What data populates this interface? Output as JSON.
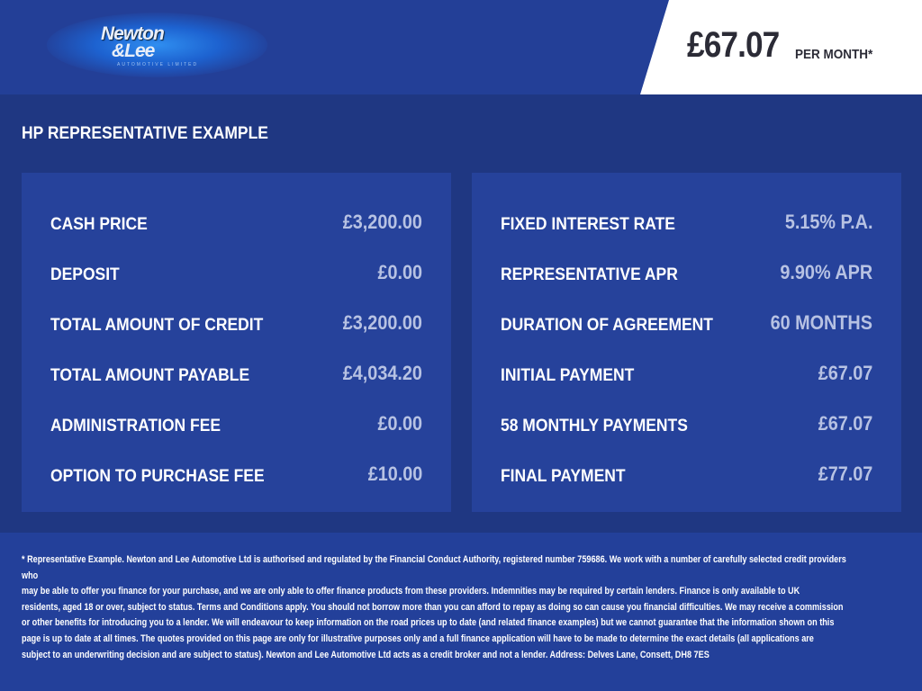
{
  "header": {
    "logo_text": [
      "Newton",
      "&Lee",
      "AUTOMOTIVE LIMITED"
    ],
    "price": "£67.07",
    "price_suffix": "PER MONTH*"
  },
  "section_title": "HP REPRESENTATIVE EXAMPLE",
  "left_panel": [
    {
      "label": "CASH PRICE",
      "value": "£3,200.00"
    },
    {
      "label": "DEPOSIT",
      "value": "£0.00"
    },
    {
      "label": "TOTAL AMOUNT OF CREDIT",
      "value": "£3,200.00"
    },
    {
      "label": "TOTAL AMOUNT PAYABLE",
      "value": "£4,034.20"
    },
    {
      "label": "ADMINISTRATION FEE",
      "value": "£0.00"
    },
    {
      "label": "OPTION TO PURCHASE FEE",
      "value": "£10.00"
    }
  ],
  "right_panel": [
    {
      "label": "FIXED INTEREST RATE",
      "value": "5.15% P.A."
    },
    {
      "label": "REPRESENTATIVE APR",
      "value": "9.90% APR"
    },
    {
      "label": "DURATION OF AGREEMENT",
      "value": "60 MONTHS"
    },
    {
      "label": "INITIAL PAYMENT",
      "value": "£67.07"
    },
    {
      "label": "58 MONTHLY PAYMENTS",
      "value": "£67.07"
    },
    {
      "label": "FINAL PAYMENT",
      "value": "£77.07"
    }
  ],
  "disclaimer": [
    "* Representative Example. Newton and Lee Automotive Ltd is authorised and regulated by the Financial Conduct Authority, registered number 759686. We work with a number of carefully selected credit providers who",
    "may be able to offer you finance for your purchase, and we are only able to offer finance products from these providers. Indemnities may be required by certain lenders. Finance is only available to UK",
    "residents, aged 18 or over, subject to status. Terms and Conditions apply. You should not borrow more than you can afford to repay as doing so can cause you financial difficulties. We may receive a commission",
    "or other benefits for introducing you to a lender. We will endeavour to keep information on the road prices up to date (and related finance examples) but we cannot guarantee that the information shown on this",
    "page is up to date at all times. The quotes provided on this page are only for illustrative purposes only and a full finance application will have to be made to determine the exact details (all applications are",
    "subject to an underwriting decision and are subject to status). Newton and Lee Automotive Ltd acts as a credit broker and not a lender. Address: Delves Lane, Consett, DH8 7ES"
  ]
}
